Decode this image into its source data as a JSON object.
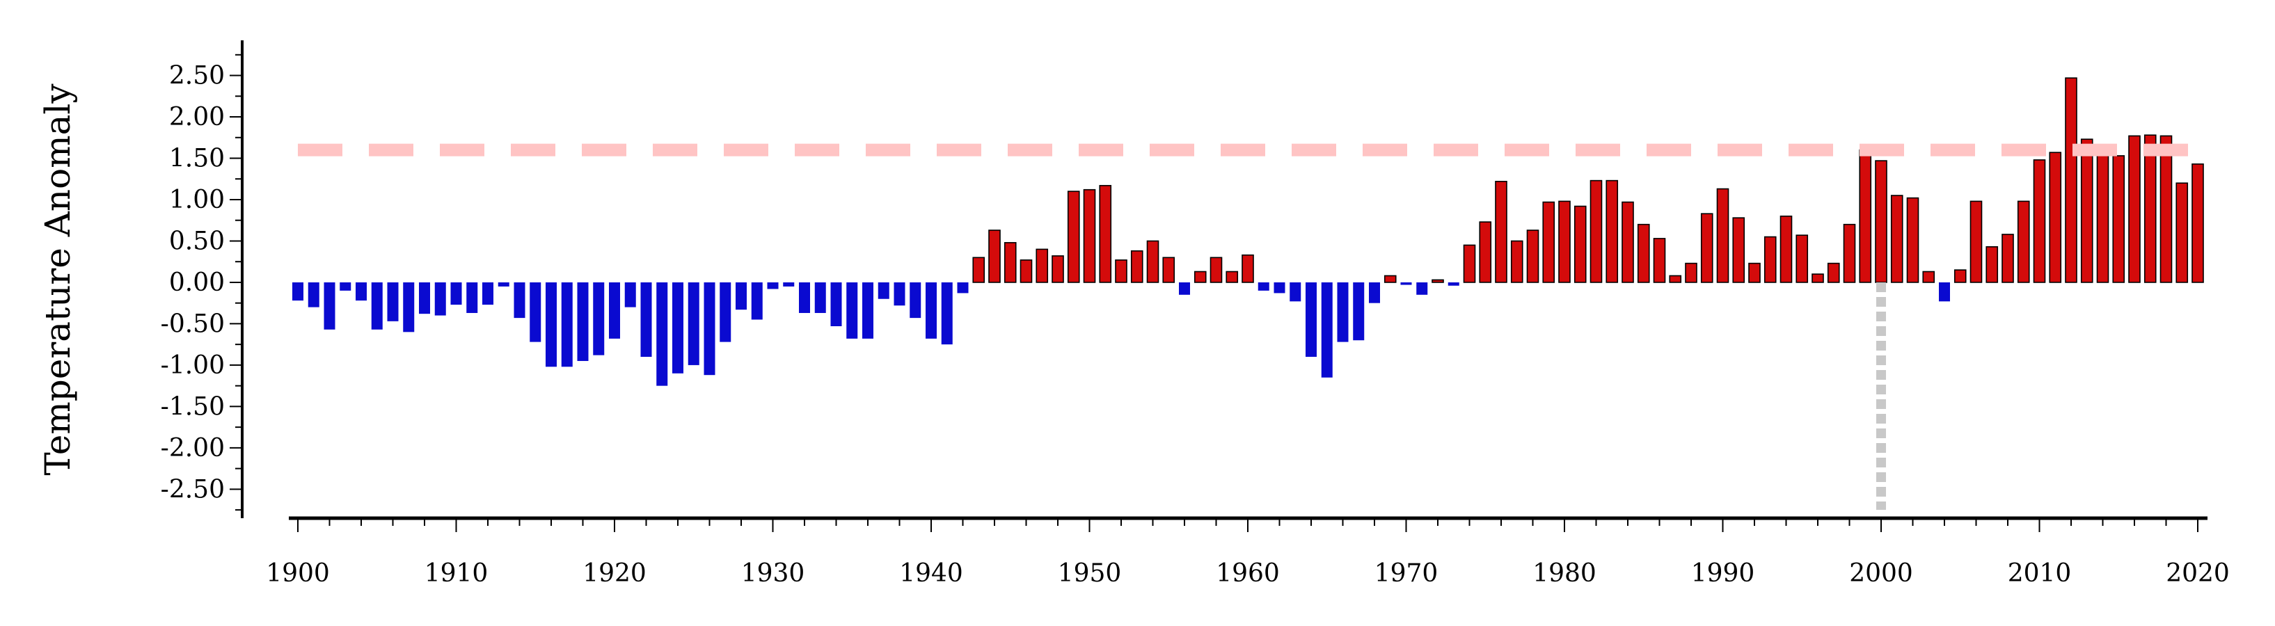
{
  "chart_data": {
    "type": "bar",
    "xlabel": "",
    "ylabel": "Temperature Anomaly",
    "x_ticks": [
      "1900",
      "1910",
      "1920",
      "1930",
      "1940",
      "1950",
      "1960",
      "1970",
      "1980",
      "1990",
      "2000",
      "2010",
      "2020"
    ],
    "y_ticks": [
      "2.50",
      "2.00",
      "1.50",
      "1.00",
      "0.50",
      "0.00",
      "-0.50",
      "-1.00",
      "-1.50",
      "-2.00",
      "-2.50"
    ],
    "ylim": [
      -2.85,
      2.95
    ],
    "xlim": [
      1899.5,
      2020.8
    ],
    "grid": false,
    "reference_line": {
      "y": 1.6,
      "style": "dashed",
      "color": "#ffc4c4"
    },
    "marker_line": {
      "x": 2000,
      "style": "dotted",
      "color": "#c8c8c8"
    },
    "colors": {
      "positive": "#d40b0b",
      "negative": "#0a0ad0",
      "positive_edge": "#000000"
    },
    "years": [
      1900,
      1901,
      1902,
      1903,
      1904,
      1905,
      1906,
      1907,
      1908,
      1909,
      1910,
      1911,
      1912,
      1913,
      1914,
      1915,
      1916,
      1917,
      1918,
      1919,
      1920,
      1921,
      1922,
      1923,
      1924,
      1925,
      1926,
      1927,
      1928,
      1929,
      1930,
      1931,
      1932,
      1933,
      1934,
      1935,
      1936,
      1937,
      1938,
      1939,
      1940,
      1941,
      1942,
      1943,
      1944,
      1945,
      1946,
      1947,
      1948,
      1949,
      1950,
      1951,
      1952,
      1953,
      1954,
      1955,
      1956,
      1957,
      1958,
      1959,
      1960,
      1961,
      1962,
      1963,
      1964,
      1965,
      1966,
      1967,
      1968,
      1969,
      1970,
      1971,
      1972,
      1973,
      1974,
      1975,
      1976,
      1977,
      1978,
      1979,
      1980,
      1981,
      1982,
      1983,
      1984,
      1985,
      1986,
      1987,
      1988,
      1989,
      1990,
      1991,
      1992,
      1993,
      1994,
      1995,
      1996,
      1997,
      1998,
      1999,
      2000,
      2001,
      2002,
      2003,
      2004,
      2005,
      2006,
      2007,
      2008,
      2009,
      2010,
      2011,
      2012,
      2013,
      2014,
      2015,
      2016,
      2017,
      2018,
      2019,
      2020
    ],
    "values": [
      -0.22,
      -0.3,
      -0.57,
      -0.1,
      -0.22,
      -0.57,
      -0.47,
      -0.6,
      -0.38,
      -0.4,
      -0.27,
      -0.37,
      -0.27,
      -0.05,
      -0.43,
      -0.72,
      -1.02,
      -1.02,
      -0.95,
      -0.88,
      -0.68,
      -0.3,
      -0.9,
      -1.25,
      -1.1,
      -1.0,
      -1.12,
      -0.72,
      -0.33,
      -0.45,
      -0.08,
      -0.05,
      -0.37,
      -0.37,
      -0.53,
      -0.68,
      -0.68,
      -0.2,
      -0.28,
      -0.43,
      -0.68,
      -0.75,
      -0.13,
      0.3,
      0.63,
      0.48,
      0.27,
      0.4,
      0.32,
      1.1,
      1.12,
      1.17,
      0.27,
      0.38,
      0.5,
      0.3,
      -0.15,
      0.13,
      0.3,
      0.13,
      0.33,
      -0.1,
      -0.13,
      -0.23,
      -0.9,
      -1.15,
      -0.72,
      -0.7,
      -0.25,
      0.08,
      -0.03,
      -0.15,
      0.03,
      -0.04,
      0.45,
      0.73,
      1.22,
      0.5,
      0.63,
      0.97,
      0.98,
      0.92,
      1.23,
      1.23,
      0.97,
      0.7,
      0.53,
      0.08,
      0.23,
      0.83,
      1.13,
      0.78,
      0.23,
      0.55,
      0.8,
      0.57,
      0.1,
      0.23,
      0.7,
      1.6,
      1.47,
      1.05,
      1.02,
      0.13,
      -0.23,
      0.15,
      0.98,
      0.43,
      0.58,
      0.98,
      1.48,
      1.57,
      2.47,
      1.73,
      1.57,
      1.53,
      1.77,
      1.78,
      1.77,
      1.2,
      1.43
    ]
  }
}
